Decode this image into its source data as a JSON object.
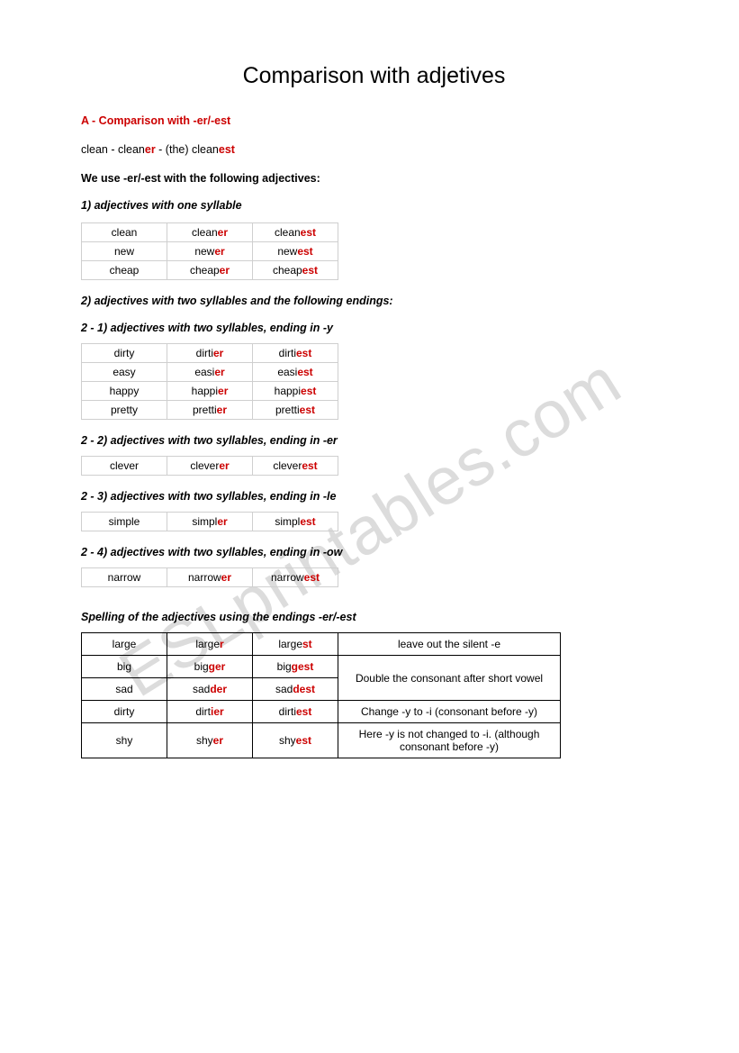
{
  "colors": {
    "accent": "#cc0000",
    "text": "#000000",
    "grid_border_light": "#cfcfcf",
    "grid_border_dark": "#000000",
    "watermark": "#dcdcdc",
    "background": "#ffffff"
  },
  "watermark": "ESLprintables.com",
  "title": "Comparison with adjetives",
  "sectionA": "A - Comparison with -er/-est",
  "example": {
    "a": "clean - clean",
    "b": "er",
    "c": " - (the) clean",
    "d": "est"
  },
  "ruleline": "We use -er/-est with the following adjectives:",
  "h1": "1) adjectives with one syllable",
  "table1": [
    {
      "base": "clean",
      "cmp": "clean",
      "cmpSuf": "er",
      "sup": "clean",
      "supSuf": "est"
    },
    {
      "base": "new",
      "cmp": "new",
      "cmpSuf": "er",
      "sup": "new",
      "supSuf": "est"
    },
    {
      "base": "cheap",
      "cmp": "cheap",
      "cmpSuf": "er",
      "sup": "cheap",
      "supSuf": "est"
    }
  ],
  "h2": "2) adjectives with two syllables and the following endings:",
  "h21": "2 - 1) adjectives with two syllables, ending in -y",
  "table21": [
    {
      "base": "dirty",
      "cmp": "dirti",
      "cmpSuf": "er",
      "sup": "dirti",
      "supSuf": "est"
    },
    {
      "base": "easy",
      "cmp": "easi",
      "cmpSuf": "er",
      "sup": "easi",
      "supSuf": "est"
    },
    {
      "base": "happy",
      "cmp": "happi",
      "cmpSuf": "er",
      "sup": "happi",
      "supSuf": "est"
    },
    {
      "base": "pretty",
      "cmp": "pretti",
      "cmpSuf": "er",
      "sup": "pretti",
      "supSuf": "est"
    }
  ],
  "h22": "2 - 2) adjectives with two syllables, ending in -er",
  "table22": [
    {
      "base": "clever",
      "cmp": "clever",
      "cmpSuf": "er",
      "sup": "clever",
      "supSuf": "est"
    }
  ],
  "h23": "2 - 3) adjectives with two syllables, ending in -le",
  "table23": [
    {
      "base": "simple",
      "cmp": "simpl",
      "cmpSuf": "er",
      "sup": "simpl",
      "supSuf": "est"
    }
  ],
  "h24": "2 - 4) adjectives with two syllables, ending in -ow",
  "table24": [
    {
      "base": "narrow",
      "cmp": "narrow",
      "cmpSuf": "er",
      "sup": "narrow",
      "supSuf": "est"
    }
  ],
  "spellingHeading": "Spelling of the adjectives using the endings -er/-est",
  "table3": [
    {
      "base": "large",
      "cmp": "large",
      "cmpSuf": "r",
      "sup": "large",
      "supSuf": "st",
      "rule": "leave out the silent -e",
      "rowspan": 1
    },
    {
      "base": "big",
      "cmp": "big",
      "cmpSuf": "ger",
      "sup": "big",
      "supSuf": "gest",
      "rule": "Double the consonant after short vowel",
      "rowspan": 2
    },
    {
      "base": "sad",
      "cmp": "sad",
      "cmpSuf": "der",
      "sup": "sad",
      "supSuf": "dest",
      "rule": "",
      "rowspan": 0
    },
    {
      "base": "dirty",
      "cmp": "dirt",
      "cmpSuf": "ier",
      "sup": "dirti",
      "supSuf": "est",
      "rule": "Change -y to -i (consonant before -y)",
      "rowspan": 1
    },
    {
      "base": "shy",
      "cmp": "shy",
      "cmpSuf": "er",
      "sup": "shy",
      "supSuf": "est",
      "rule": "Here -y is not changed to -i. (although consonant before -y)",
      "rowspan": 1
    }
  ]
}
